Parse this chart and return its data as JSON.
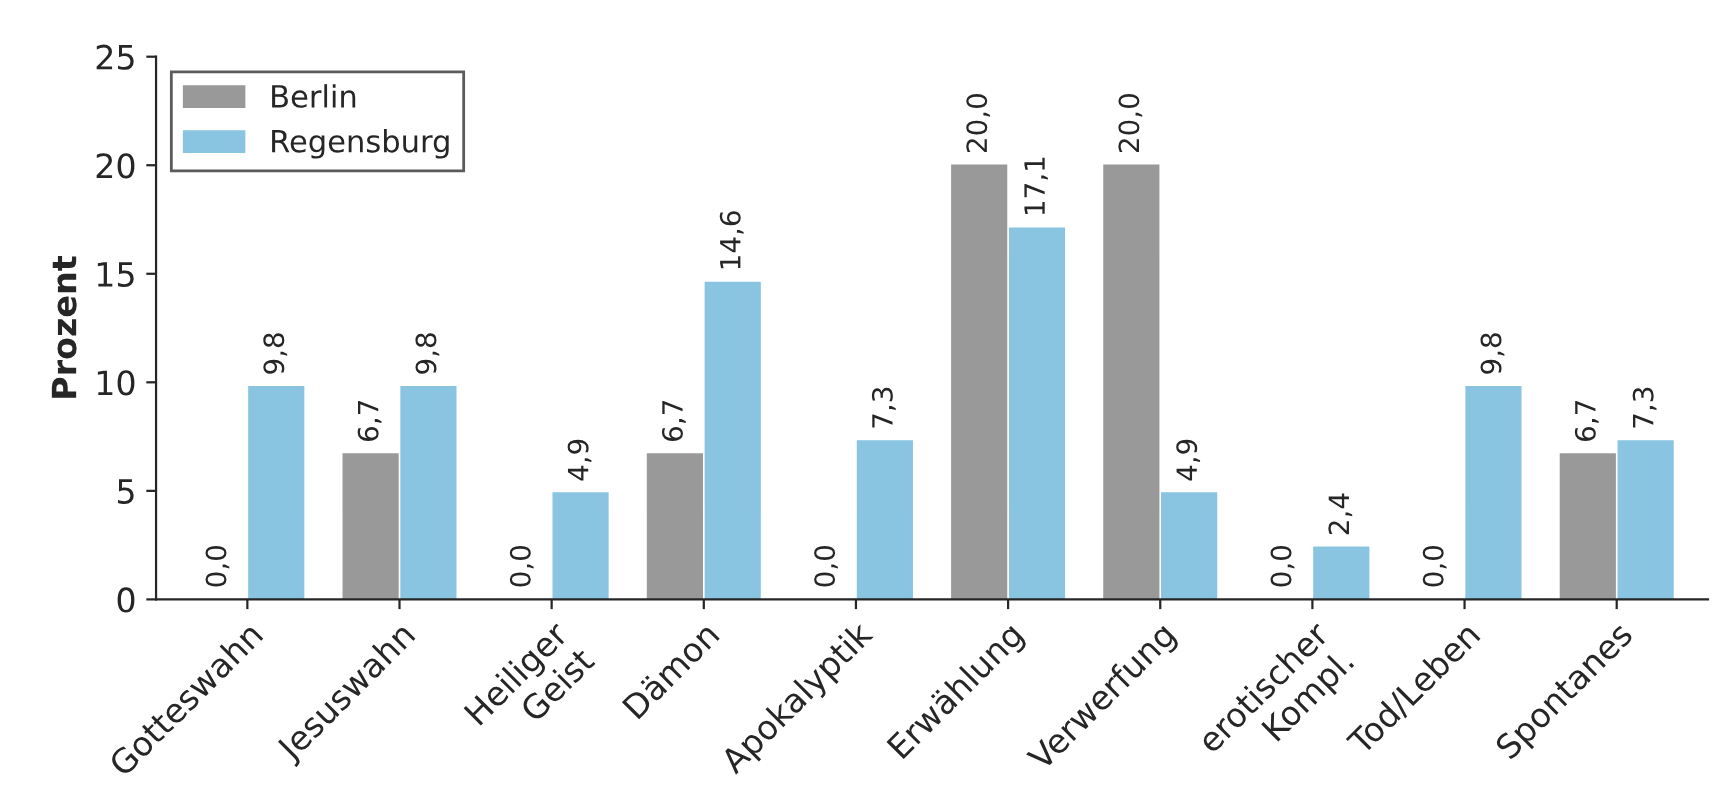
{
  "chart_data": {
    "type": "bar",
    "ylabel": "Prozent",
    "categories": [
      "Gotteswahn",
      "Jesuswahn",
      "Heiliger\nGeist",
      "Dämon",
      "Apokalyptik",
      "Erwählung",
      "Verwerfung",
      "erotischer\nKompl.",
      "Tod/Leben",
      "Spontanes"
    ],
    "series": [
      {
        "name": "Berlin",
        "color": "#999999",
        "values": [
          0.0,
          6.7,
          0.0,
          6.7,
          0.0,
          20.0,
          20.0,
          0.0,
          0.0,
          6.7
        ],
        "value_labels": [
          "0,0",
          "6,7",
          "0,0",
          "6,7",
          "0,0",
          "20,0",
          "20,0",
          "0,0",
          "0,0",
          "6,7"
        ]
      },
      {
        "name": "Regensburg",
        "color": "#89c4e1",
        "values": [
          9.8,
          9.8,
          4.9,
          14.6,
          7.3,
          17.1,
          4.9,
          2.4,
          9.8,
          7.3
        ],
        "value_labels": [
          "9,8",
          "9,8",
          "4,9",
          "14,6",
          "7,3",
          "17,1",
          "4,9",
          "2,4",
          "9,8",
          "7,3"
        ]
      }
    ],
    "ylim": [
      0,
      25
    ],
    "yticks": [
      0,
      5,
      10,
      15,
      20,
      25
    ],
    "grid": false,
    "legend": "top left"
  }
}
